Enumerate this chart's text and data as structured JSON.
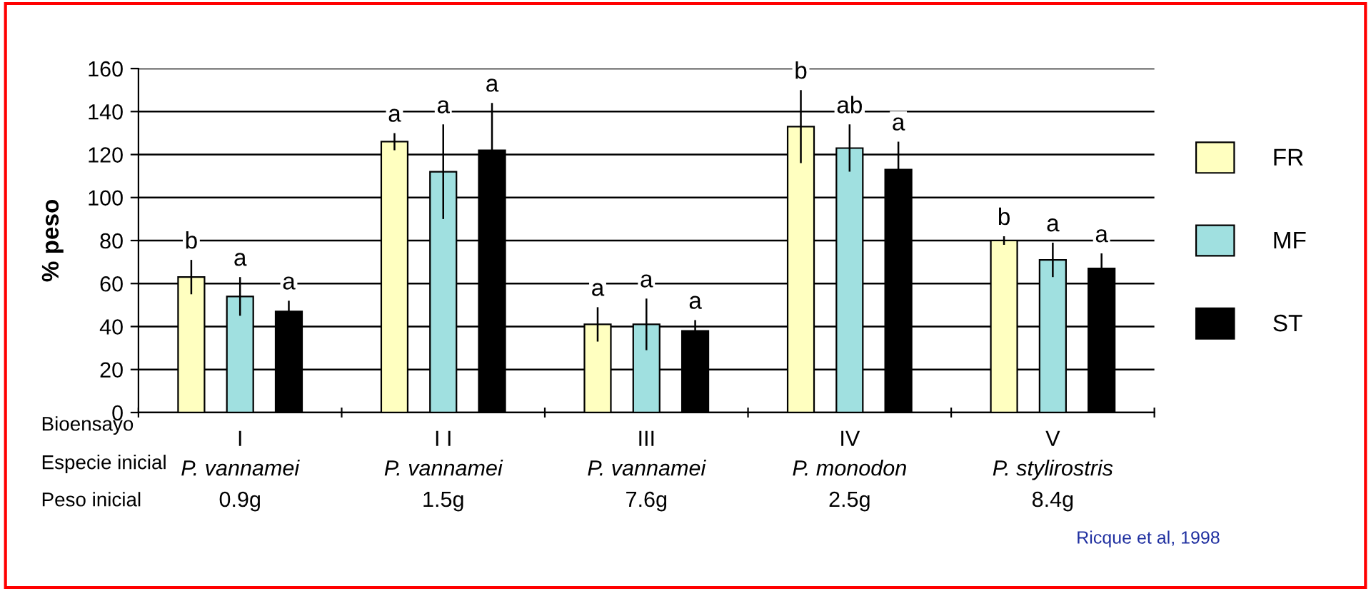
{
  "chart_data": {
    "type": "bar",
    "ylabel": "% peso",
    "categories": [
      "I\nP. vannamei\n0.9g",
      "I I\nP. vannamei\n1.5g",
      "III\nP. vannamei\n7.6g",
      "IV\nP. monodon\n2.5g",
      "V\nP. stylirostris\n8.4g"
    ],
    "series": [
      {
        "name": "FR",
        "color": "#ffffc0",
        "values": [
          63,
          126,
          41,
          133,
          80
        ],
        "errors": [
          8,
          4,
          8,
          17,
          2
        ],
        "value_labels": [
          "b",
          "a",
          "a",
          "b",
          "b"
        ]
      },
      {
        "name": "MF",
        "color": "#a0e0e0",
        "values": [
          54,
          112,
          41,
          123,
          71
        ],
        "errors": [
          9,
          22,
          12,
          11,
          8
        ],
        "value_labels": [
          "a",
          "a",
          "a",
          "ab",
          "a"
        ]
      },
      {
        "name": "ST",
        "color": "#000000",
        "values": [
          47,
          122,
          38,
          113,
          67
        ],
        "errors": [
          5,
          22,
          5,
          13,
          7
        ],
        "value_labels": [
          "a",
          "a",
          "a",
          "a",
          "a"
        ]
      }
    ],
    "ylim": [
      0,
      160
    ],
    "yticks": [
      0,
      20,
      40,
      60,
      80,
      100,
      120,
      140,
      160
    ],
    "grid": "y",
    "legend": "right",
    "annotations": [
      "Bioensayo",
      "Especie inicial",
      "Peso inicial",
      "Ricque et al, 1998"
    ]
  }
}
